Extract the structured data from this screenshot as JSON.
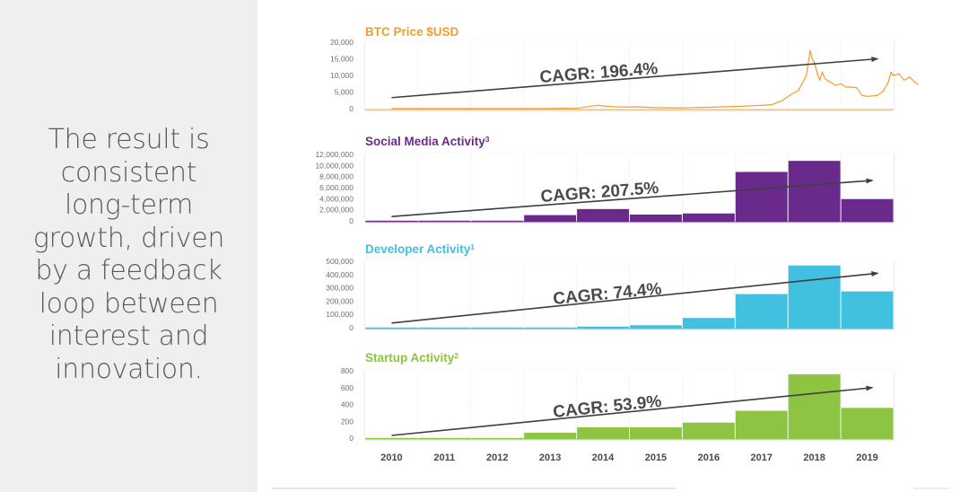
{
  "statement": {
    "lines": [
      "The result is",
      "consistent",
      "long-term",
      "growth, driven",
      "by a feedback",
      "loop between",
      "interest and",
      "innovation."
    ]
  },
  "years": [
    "2010",
    "2011",
    "2012",
    "2013",
    "2014",
    "2015",
    "2016",
    "2017",
    "2018",
    "2019"
  ],
  "chart_data": [
    {
      "type": "line",
      "title": "BTC Price $USD",
      "color": "#f39c2c",
      "ylim": [
        0,
        20000
      ],
      "yticks": [
        0,
        5000,
        10000,
        15000,
        20000
      ],
      "ytick_labels": [
        "0",
        "5,000",
        "10,000",
        "15,000",
        "20,000"
      ],
      "xlabel": "",
      "ylabel": "",
      "grid": "vertical-dotted",
      "annotation": "CAGR: 196.4%",
      "x": [
        2010.0,
        2010.5,
        2011.0,
        2011.4,
        2011.45,
        2011.6,
        2012.0,
        2012.5,
        2013.0,
        2013.3,
        2013.5,
        2013.9,
        2014.0,
        2014.3,
        2014.6,
        2015.0,
        2015.5,
        2016.0,
        2016.5,
        2017.0,
        2017.2,
        2017.4,
        2017.55,
        2017.7,
        2017.85,
        2017.92,
        2017.96,
        2018.0,
        2018.05,
        2018.1,
        2018.15,
        2018.2,
        2018.3,
        2018.4,
        2018.5,
        2018.6,
        2018.7,
        2018.8,
        2018.9,
        2019.0,
        2019.1,
        2019.2,
        2019.3,
        2019.4,
        2019.45,
        2019.5,
        2019.6,
        2019.7,
        2019.8,
        2019.9,
        2019.97
      ],
      "y": [
        0,
        0,
        1,
        10,
        30,
        5,
        5,
        10,
        15,
        100,
        90,
        1000,
        800,
        500,
        550,
        300,
        250,
        400,
        650,
        1000,
        1200,
        2500,
        4200,
        5500,
        10000,
        17500,
        15000,
        14000,
        11000,
        8500,
        11000,
        9000,
        8000,
        7000,
        7500,
        6500,
        6500,
        6300,
        4000,
        3700,
        3800,
        4000,
        5200,
        8000,
        11000,
        10000,
        10500,
        8500,
        9500,
        8000,
        7200
      ],
      "trend": {
        "start_year": 2010,
        "start_value": 2500,
        "end_year": 2019.2,
        "end_value": 15000
      }
    },
    {
      "type": "bar",
      "title": "Social Media Activity",
      "title_superscript": "3",
      "color": "#6a2a8c",
      "ylim": [
        0,
        12000000
      ],
      "yticks": [
        0,
        2000000,
        4000000,
        6000000,
        8000000,
        10000000,
        12000000
      ],
      "ytick_labels": [
        "0",
        "2,000,000",
        "4,000,000",
        "6,000,000",
        "8,000,000",
        "10,000,000",
        "12,000,000"
      ],
      "categories": [
        "2010",
        "2011",
        "2012",
        "2013",
        "2014",
        "2015",
        "2016",
        "2017",
        "2018",
        "2019"
      ],
      "values": [
        50000,
        100000,
        150000,
        1200000,
        2300000,
        1300000,
        1500000,
        9000000,
        11000000,
        4100000
      ],
      "annotation": "CAGR: 207.5%",
      "trend": {
        "start_year": 2010,
        "start_value": 300000,
        "end_year": 2019.1,
        "end_value": 7300000
      }
    },
    {
      "type": "bar",
      "title": "Developer Activity",
      "title_superscript": "1",
      "color": "#41c0e0",
      "ylim": [
        0,
        500000
      ],
      "yticks": [
        0,
        100000,
        200000,
        300000,
        400000,
        500000
      ],
      "ytick_labels": [
        "0",
        "100,000",
        "200,000",
        "300,000",
        "400,000",
        "500,000"
      ],
      "categories": [
        "2010",
        "2011",
        "2012",
        "2013",
        "2014",
        "2015",
        "2016",
        "2017",
        "2018",
        "2019"
      ],
      "values": [
        0,
        0,
        1000,
        5000,
        15000,
        25000,
        80000,
        260000,
        475000,
        280000
      ],
      "annotation": "CAGR: 74.4%",
      "trend": {
        "start_year": 2010,
        "start_value": 15000,
        "end_year": 2019.2,
        "end_value": 410000
      }
    },
    {
      "type": "bar",
      "title": "Startup Activity",
      "title_superscript": "2",
      "color": "#8dc442",
      "ylim": [
        0,
        800
      ],
      "yticks": [
        0,
        200,
        400,
        600,
        800
      ],
      "ytick_labels": [
        "0",
        "200",
        "400",
        "600",
        "800"
      ],
      "categories": [
        "2010",
        "2011",
        "2012",
        "2013",
        "2014",
        "2015",
        "2016",
        "2017",
        "2018",
        "2019"
      ],
      "values": [
        2,
        5,
        10,
        75,
        140,
        140,
        195,
        335,
        770,
        370
      ],
      "annotation": "CAGR: 53.9%",
      "trend": {
        "start_year": 2010,
        "start_value": 0,
        "end_year": 2019.1,
        "end_value": 600
      }
    }
  ]
}
